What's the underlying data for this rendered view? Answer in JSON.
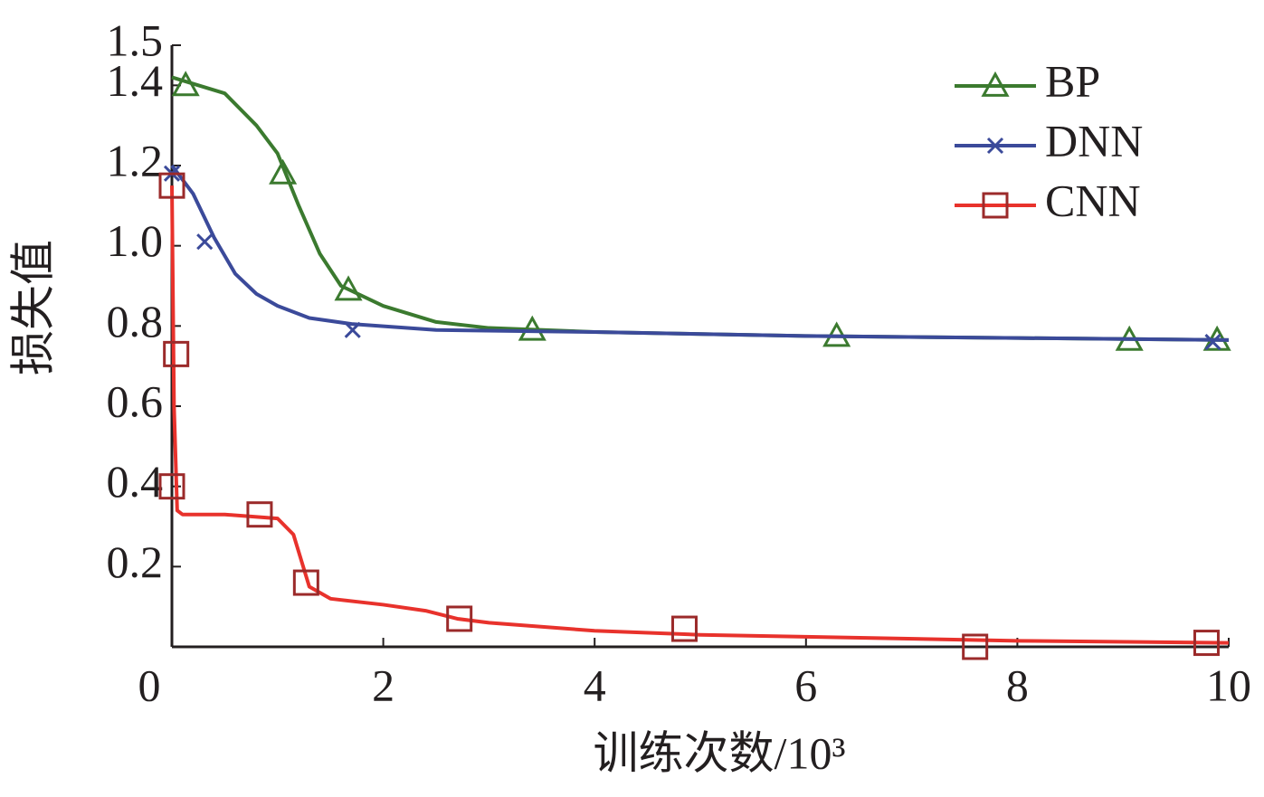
{
  "chart_data": {
    "type": "line",
    "xlabel": "训练次数/10³",
    "ylabel": "损失值",
    "xlim": [
      0,
      10
    ],
    "xticks": [
      0,
      2,
      4,
      6,
      8,
      10
    ],
    "ylim": [
      0,
      1.5
    ],
    "yticks": [
      0.2,
      0.4,
      0.6,
      0.8,
      {
        "value": 1,
        "label": "1.0"
      },
      1.2,
      1.4,
      1.5
    ],
    "legend": "upper right",
    "series": [
      {
        "name": "BP",
        "color": "#3b7a2f",
        "marker": "triangle",
        "x": [
          0,
          0.5,
          0.8,
          1.0,
          1.2,
          1.4,
          1.6,
          2.0,
          2.5,
          3,
          4,
          6,
          8,
          10
        ],
        "values": [
          1.42,
          1.38,
          1.3,
          1.23,
          1.1,
          0.98,
          0.9,
          0.85,
          0.81,
          0.795,
          0.785,
          0.775,
          0.77,
          0.765
        ],
        "markers": {
          "x": [
            0.13,
            1.05,
            1.67,
            3.41,
            6.29,
            9.06,
            9.89
          ],
          "values": [
            1.4,
            1.18,
            0.89,
            0.79,
            0.775,
            0.765,
            0.765
          ]
        }
      },
      {
        "name": "DNN",
        "color": "#3b4a9a",
        "marker": "cross",
        "x": [
          0,
          0.2,
          0.4,
          0.6,
          0.8,
          1.0,
          1.3,
          1.7,
          2.5,
          4,
          6,
          8,
          10
        ],
        "values": [
          1.2,
          1.13,
          1.02,
          0.93,
          0.88,
          0.85,
          0.82,
          0.805,
          0.79,
          0.785,
          0.775,
          0.77,
          0.765
        ],
        "markers": {
          "x": [
            0,
            0.31,
            1.71,
            9.85
          ],
          "values": [
            1.18,
            1.01,
            0.79,
            0.76
          ]
        }
      },
      {
        "name": "CNN",
        "color": "#e8322c",
        "marker_color": "#9b2a2a",
        "marker": "square",
        "x": [
          0,
          0.02,
          0.05,
          0.1,
          0.5,
          1.0,
          1.15,
          1.3,
          1.5,
          2,
          2.4,
          2.7,
          3,
          4,
          5,
          6,
          8,
          10
        ],
        "values": [
          1.15,
          0.6,
          0.34,
          0.33,
          0.33,
          0.32,
          0.28,
          0.15,
          0.12,
          0.105,
          0.09,
          0.07,
          0.06,
          0.04,
          0.03,
          0.025,
          0.015,
          0.01
        ],
        "markers": {
          "x": [
            0,
            0.04,
            0,
            0.83,
            1.27,
            2.72,
            4.85,
            7.6,
            9.79
          ],
          "values": [
            1.15,
            0.73,
            0.4,
            0.33,
            0.16,
            0.07,
            0.045,
            0,
            0.01
          ]
        }
      }
    ]
  }
}
